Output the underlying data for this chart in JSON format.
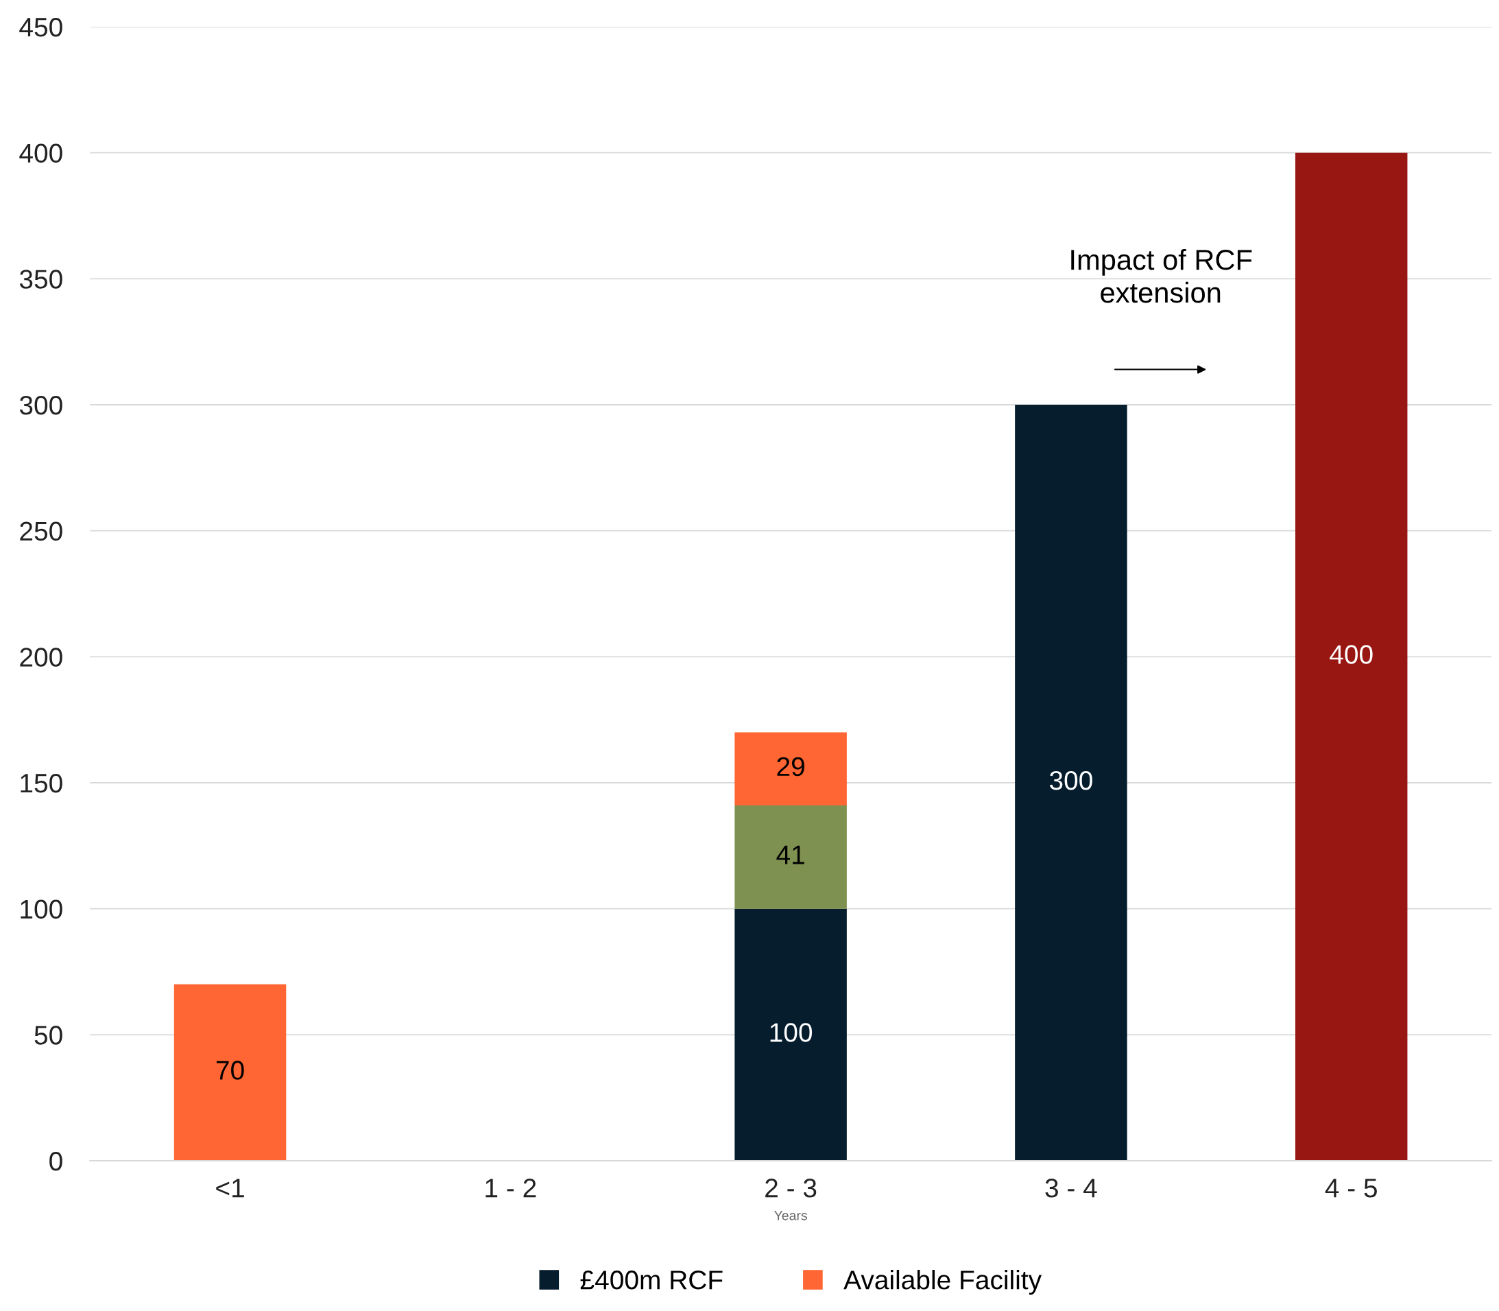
{
  "chart_data": {
    "type": "bar",
    "stacked": true,
    "categories": [
      "<1",
      "1 - 2",
      "2 - 3",
      "3 - 4",
      "4 - 5"
    ],
    "series": [
      {
        "name": "£400m RCF",
        "color": "#061d2e",
        "values": [
          null,
          null,
          100,
          300,
          null
        ]
      },
      {
        "color": "#7f9150",
        "values": [
          null,
          null,
          41,
          null,
          null
        ]
      },
      {
        "name": "Available Facility",
        "color": "#ff6633",
        "values": [
          70,
          null,
          29,
          null,
          null
        ]
      },
      {
        "color": "#981712",
        "values": [
          null,
          null,
          null,
          null,
          400
        ]
      }
    ],
    "xlabel": "Years",
    "ylim": [
      0,
      450
    ],
    "yticks": [
      0,
      50,
      100,
      150,
      200,
      250,
      300,
      350,
      400,
      450
    ],
    "grid": "y",
    "legend": "bottom",
    "data_labels": true,
    "annotations": [
      "Impact of RCF extension"
    ]
  }
}
